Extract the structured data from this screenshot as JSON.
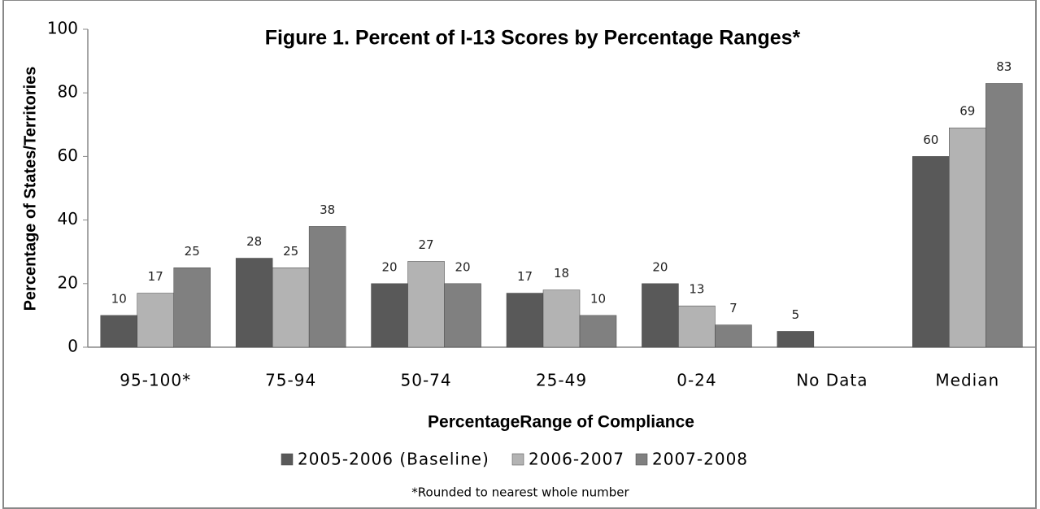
{
  "chart_data": {
    "type": "bar",
    "title": "Figure 1. Percent of I-13 Scores by Percentage Ranges*",
    "x_label": "PercentageRange of Compliance",
    "y_label": "Percentage of States/Territories",
    "footnote": "*Rounded to nearest whole number",
    "categories": [
      "95-100*",
      "75-94",
      "50-74",
      "25-49",
      "0-24",
      "No Data",
      "Median"
    ],
    "series": [
      {
        "name": "2005-2006 (Baseline)",
        "color": "#595959",
        "values": [
          10,
          28,
          20,
          17,
          20,
          5,
          60
        ]
      },
      {
        "name": "2006-2007",
        "color": "#b3b3b3",
        "values": [
          17,
          25,
          27,
          18,
          13,
          null,
          69
        ]
      },
      {
        "name": "2007-2008",
        "color": "#808080",
        "values": [
          25,
          38,
          20,
          10,
          7,
          null,
          83
        ]
      }
    ],
    "ylim": [
      0,
      100
    ],
    "yticks": [
      0,
      20,
      40,
      60,
      80,
      100
    ],
    "grid": false,
    "legend": "bottom"
  }
}
